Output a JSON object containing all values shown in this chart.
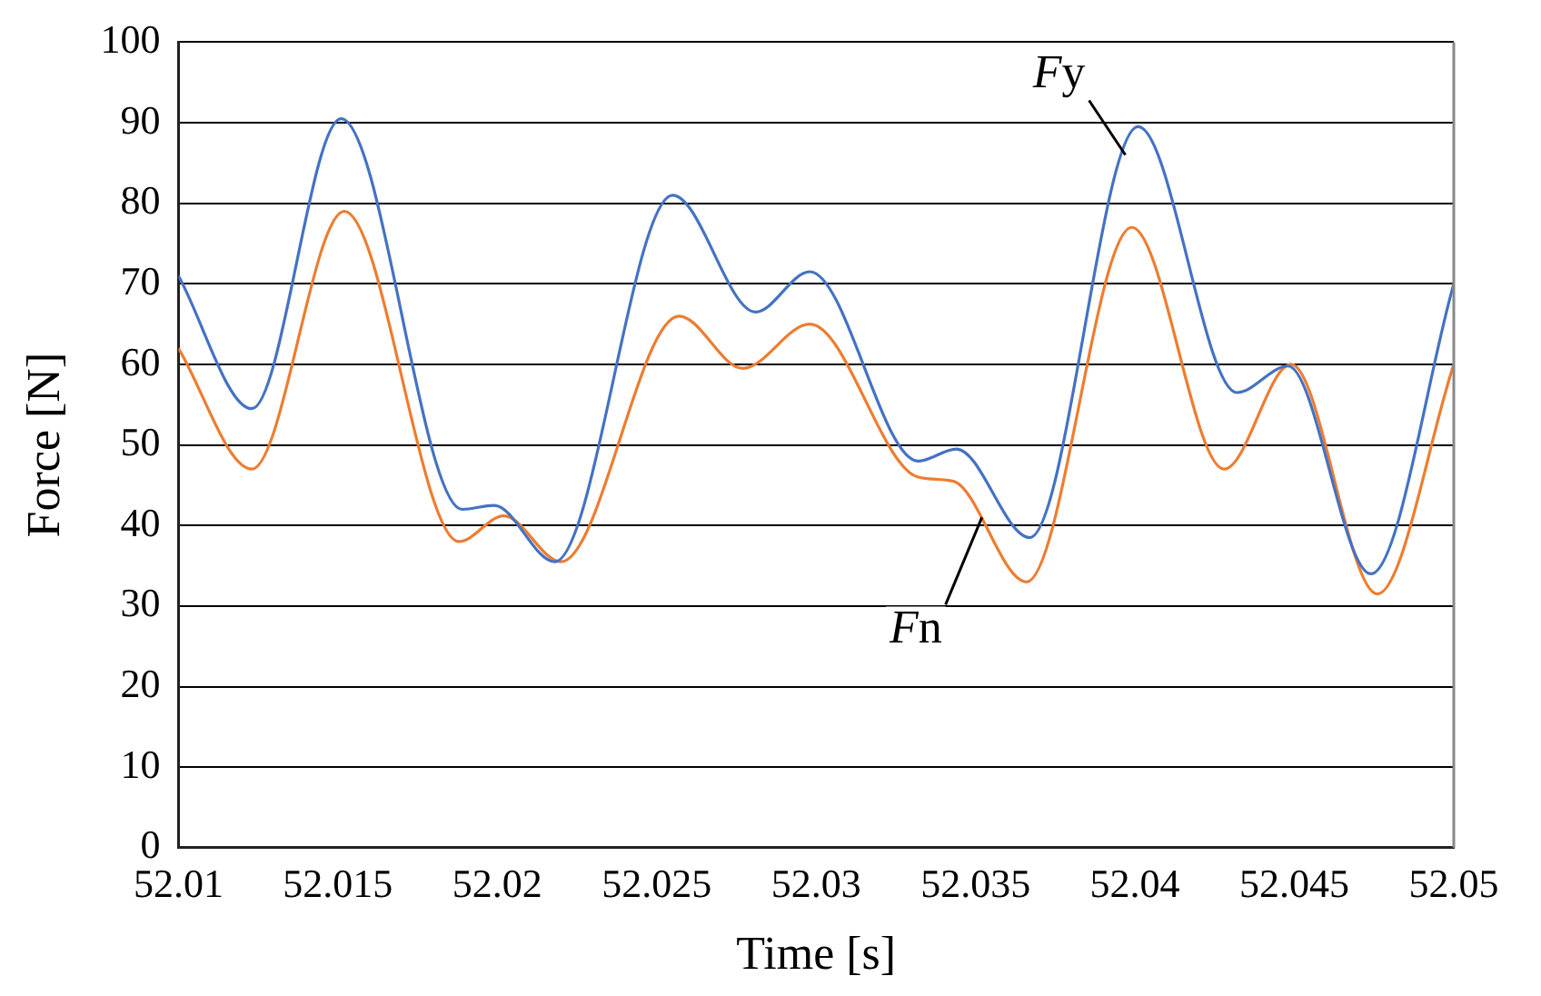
{
  "chart_data": {
    "type": "line",
    "xlabel": "Time [s]",
    "ylabel": "Force [N]",
    "xlim": [
      52.01,
      52.05
    ],
    "xticks": [
      52.01,
      52.015,
      52.02,
      52.025,
      52.03,
      52.035,
      52.04,
      52.045,
      52.05
    ],
    "ylim": [
      0,
      100
    ],
    "yticks": [
      0,
      10,
      20,
      30,
      40,
      50,
      60,
      70,
      80,
      90,
      100
    ],
    "grid": "y",
    "legend": false,
    "marker": "none",
    "line_style": "solid",
    "series": [
      {
        "color": "#4472c4",
        "x": [
          52.01,
          52.0123,
          52.0151,
          52.0189,
          52.0199,
          52.0218,
          52.0255,
          52.0281,
          52.0298,
          52.0332,
          52.0344,
          52.0367,
          52.0401,
          52.0432,
          52.0448,
          52.0474,
          52.05
        ],
        "values": [
          71,
          54.5,
          90.5,
          42,
          42.5,
          35.5,
          81,
          66.5,
          71.5,
          48,
          49.5,
          38.5,
          89.5,
          56.5,
          59.8,
          34,
          70
        ]
      },
      {
        "color": "#ed7d31",
        "x": [
          52.01,
          52.0123,
          52.0152,
          52.0188,
          52.0202,
          52.022,
          52.0257,
          52.0277,
          52.0298,
          52.0332,
          52.0343,
          52.0366,
          52.0399,
          52.0428,
          52.0449,
          52.0476,
          52.05
        ],
        "values": [
          62,
          47,
          79,
          38,
          41.2,
          35.5,
          66,
          59.5,
          65,
          46,
          45.5,
          33,
          77,
          47,
          60,
          31.5,
          60
        ]
      }
    ],
    "annotations": [
      {
        "text": "Fy",
        "x": 52.0397,
        "y": 86
      },
      {
        "text": "Fn",
        "x": 52.0352,
        "y": 41
      }
    ]
  }
}
